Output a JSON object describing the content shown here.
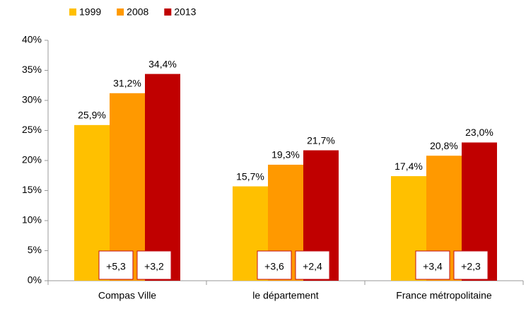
{
  "chart_data": {
    "type": "bar",
    "categories": [
      "Compas Ville",
      "le département",
      "France métropolitaine"
    ],
    "series": [
      {
        "name": "1999",
        "color": "#ffc000",
        "values": [
          25.9,
          15.7,
          17.4
        ],
        "value_labels": [
          "25,9%",
          "15,7%",
          "17,4%"
        ]
      },
      {
        "name": "2008",
        "color": "#ff9900",
        "values": [
          31.2,
          19.3,
          20.8
        ],
        "value_labels": [
          "31,2%",
          "19,3%",
          "20,8%"
        ]
      },
      {
        "name": "2013",
        "color": "#c00000",
        "values": [
          34.4,
          21.7,
          23.0
        ],
        "value_labels": [
          "34,4%",
          "21,7%",
          "23,0%"
        ]
      }
    ],
    "change_labels": [
      [
        "+5,3",
        "+3,2"
      ],
      [
        "+3,6",
        "+2,4"
      ],
      [
        "+3,4",
        "+2,3"
      ]
    ],
    "ylim": [
      0,
      40
    ],
    "yticks": [
      {
        "value": 0,
        "label": "0%"
      },
      {
        "value": 5,
        "label": "5%"
      },
      {
        "value": 10,
        "label": "10%"
      },
      {
        "value": 15,
        "label": "15%"
      },
      {
        "value": 20,
        "label": "20%"
      },
      {
        "value": 25,
        "label": "25%"
      },
      {
        "value": 30,
        "label": "30%"
      },
      {
        "value": 35,
        "label": "35%"
      },
      {
        "value": 40,
        "label": "40%"
      }
    ],
    "grid": false,
    "legend": "top"
  }
}
